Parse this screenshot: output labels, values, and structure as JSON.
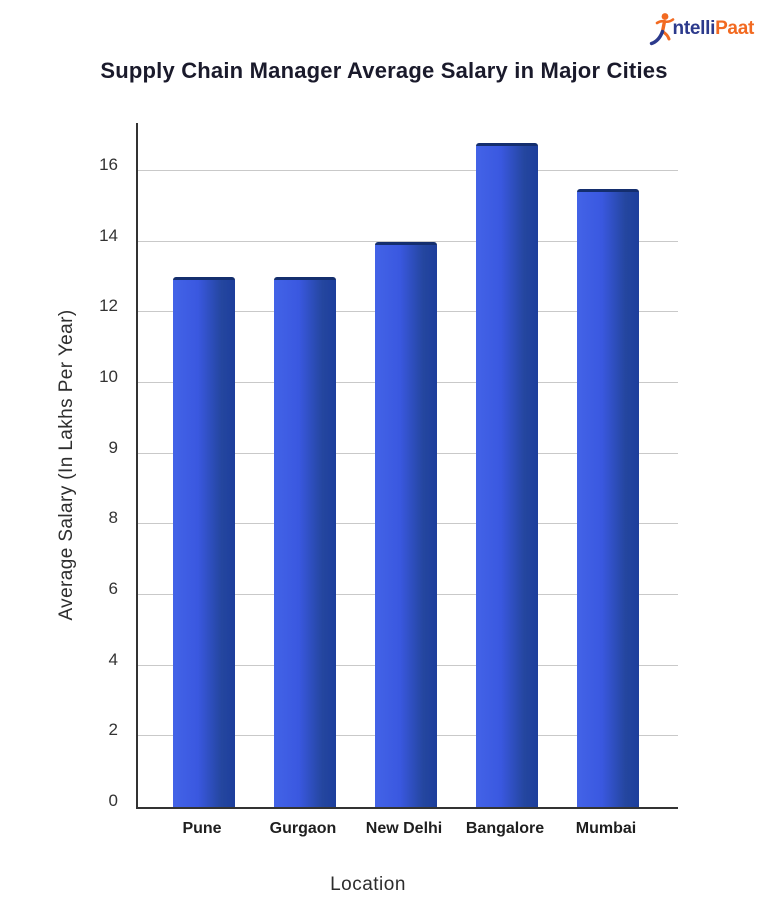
{
  "brand": {
    "prefix": "ntelli",
    "suffix": "Paat",
    "blue": "#2c3a8c",
    "orange": "#f26a21"
  },
  "chart_data": {
    "type": "bar",
    "title": "Supply Chain Manager Average Salary in Major Cities",
    "xlabel": "Location",
    "ylabel": "Average Salary (In Lakhs Per Year)",
    "categories": [
      "Pune",
      "Gurgaon",
      "New Delhi",
      "Bangalore",
      "Mumbai"
    ],
    "values": [
      13,
      13,
      14,
      16.8,
      15.5
    ],
    "y_ticks": [
      0,
      2,
      4,
      6,
      8,
      9,
      10,
      12,
      14,
      16
    ],
    "y_ticks_note": "ticks are equally spaced on the axis despite non-uniform values",
    "ylim": [
      0,
      17.2
    ],
    "grid": "horizontal",
    "legend_position": "none",
    "bar_gradient": [
      "#4363e7",
      "#3a58e0",
      "#1d3e9c"
    ],
    "bar_top_edge_color": "#142e6e",
    "axis_color": "#333333",
    "gridline_color": "#c9c9c9",
    "background_color": "#ffffff"
  }
}
